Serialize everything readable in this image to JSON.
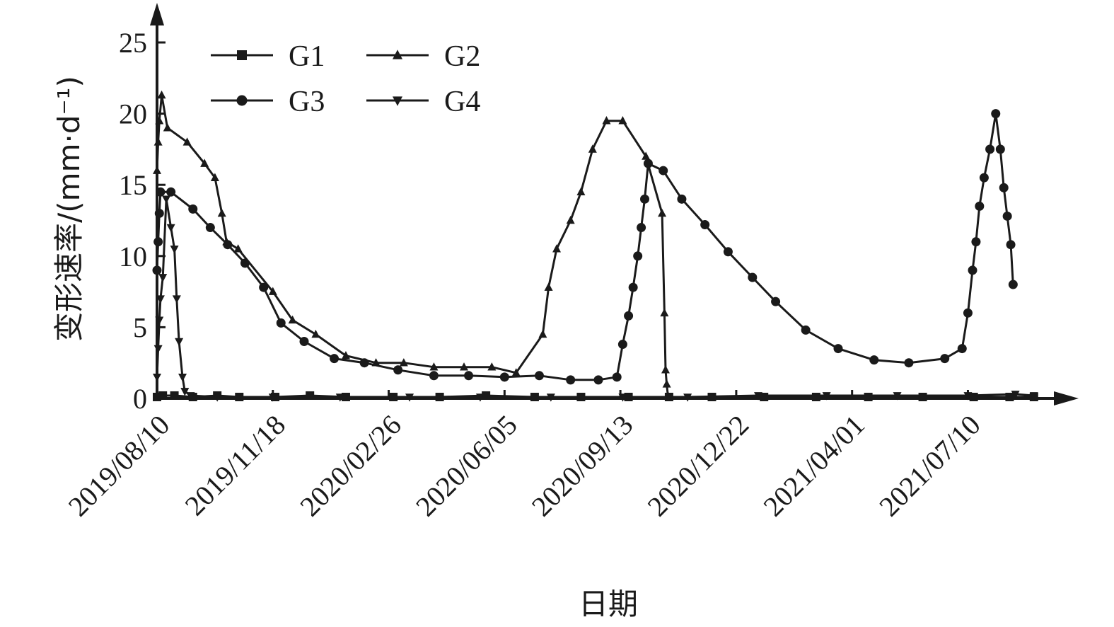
{
  "chart_data": {
    "type": "line",
    "xlabel": "日期",
    "ylabel": "变形速率/(mm·d⁻¹)",
    "ylim": [
      0,
      25
    ],
    "xlim": [
      "2019-08-10",
      "2021-09-10"
    ],
    "y_ticks": [
      0,
      5,
      10,
      15,
      20,
      25
    ],
    "x_tick_labels": [
      "2019/08/10",
      "2019/11/18",
      "2020/02/26",
      "2020/06/05",
      "2020/09/13",
      "2020/12/22",
      "2021/04/01",
      "2021/07/10"
    ],
    "x_tick_dates": [
      "2019-08-10",
      "2019-11-18",
      "2020-02-26",
      "2020-06-05",
      "2020-09-13",
      "2020-12-22",
      "2021-04-01",
      "2021-07-10"
    ],
    "legend_position": "top-left",
    "grid": false,
    "series": [
      {
        "name": "G1",
        "marker": "square",
        "x": [
          "2019-08-10",
          "2019-08-15",
          "2019-08-25",
          "2019-09-10",
          "2019-10-01",
          "2019-10-20",
          "2019-11-20",
          "2019-12-20",
          "2020-01-20",
          "2020-03-01",
          "2020-04-10",
          "2020-05-20",
          "2020-07-01",
          "2020-08-10",
          "2020-09-20",
          "2020-10-25",
          "2020-12-01",
          "2021-01-15",
          "2021-03-01",
          "2021-04-15",
          "2021-06-01",
          "2021-07-15",
          "2021-08-15",
          "2021-09-05"
        ],
        "values": [
          0.1,
          0.2,
          0.2,
          0.1,
          0.2,
          0.1,
          0.1,
          0.2,
          0.1,
          0.1,
          0.1,
          0.2,
          0.1,
          0.1,
          0.1,
          0.1,
          0.1,
          0.1,
          0.1,
          0.1,
          0.1,
          0.1,
          0.1,
          0.1
        ]
      },
      {
        "name": "G2",
        "marker": "triangle-up",
        "x": [
          "2019-08-10",
          "2019-08-11",
          "2019-08-12",
          "2019-08-14",
          "2019-08-19",
          "2019-09-05",
          "2019-09-20",
          "2019-09-29",
          "2019-10-05",
          "2019-10-09",
          "2019-10-19",
          "2019-11-18",
          "2019-12-05",
          "2019-12-25",
          "2020-01-20",
          "2020-02-15",
          "2020-03-10",
          "2020-04-05",
          "2020-05-01",
          "2020-05-25",
          "2020-06-15",
          "2020-07-08",
          "2020-07-13",
          "2020-07-20",
          "2020-08-01",
          "2020-08-10",
          "2020-08-20",
          "2020-09-01",
          "2020-09-15",
          "2020-10-05",
          "2020-10-19",
          "2020-10-21",
          "2020-10-22",
          "2020-10-23",
          "2020-10-24"
        ],
        "values": [
          16,
          18,
          19.5,
          21.3,
          19,
          18,
          16.5,
          15.5,
          13,
          11,
          10.5,
          7.5,
          5.5,
          4.5,
          3,
          2.5,
          2.5,
          2.2,
          2.2,
          2.2,
          1.8,
          4.5,
          7.8,
          10.5,
          12.5,
          14.5,
          17.5,
          19.5,
          19.5,
          17,
          13,
          6,
          2,
          1,
          0.2
        ]
      },
      {
        "name": "G3",
        "marker": "circle",
        "x": [
          "2019-08-10",
          "2019-08-11",
          "2019-08-12",
          "2019-08-13",
          "2019-08-22",
          "2019-09-10",
          "2019-09-25",
          "2019-10-10",
          "2019-10-25",
          "2019-11-10",
          "2019-11-25",
          "2019-12-15",
          "2020-01-10",
          "2020-02-05",
          "2020-03-05",
          "2020-04-05",
          "2020-05-05",
          "2020-06-05",
          "2020-07-05",
          "2020-08-01",
          "2020-08-25",
          "2020-09-10",
          "2020-09-15",
          "2020-09-20",
          "2020-09-24",
          "2020-09-28",
          "2020-10-01",
          "2020-10-04",
          "2020-10-07",
          "2020-10-20",
          "2020-11-05",
          "2020-11-25",
          "2020-12-15",
          "2021-01-05",
          "2021-01-25",
          "2021-02-20",
          "2021-03-20",
          "2021-04-20",
          "2021-05-20",
          "2021-06-20",
          "2021-07-05",
          "2021-07-10",
          "2021-07-14",
          "2021-07-17",
          "2021-07-20",
          "2021-07-24",
          "2021-07-29",
          "2021-08-03",
          "2021-08-07",
          "2021-08-10",
          "2021-08-13",
          "2021-08-16",
          "2021-08-18"
        ],
        "values": [
          9,
          11,
          13,
          14.5,
          14.5,
          13.3,
          12,
          10.8,
          9.5,
          7.8,
          5.3,
          4,
          2.8,
          2.5,
          2,
          1.6,
          1.6,
          1.5,
          1.6,
          1.3,
          1.3,
          1.5,
          3.8,
          5.8,
          7.8,
          10,
          12,
          14,
          16.5,
          16,
          14,
          12.2,
          10.3,
          8.5,
          6.8,
          4.8,
          3.5,
          2.7,
          2.5,
          2.8,
          3.5,
          6,
          9,
          11,
          13.5,
          15.5,
          17.5,
          20,
          17.5,
          14.8,
          12.8,
          10.8,
          8
        ]
      },
      {
        "name": "G4",
        "marker": "triangle-down",
        "x": [
          "2019-08-10",
          "2019-08-11",
          "2019-08-12",
          "2019-08-13",
          "2019-08-15",
          "2019-08-18",
          "2019-08-22",
          "2019-08-25",
          "2019-08-27",
          "2019-08-29",
          "2019-09-01",
          "2019-09-03",
          "2019-09-08",
          "2019-10-01",
          "2019-11-18",
          "2020-01-15",
          "2020-03-15",
          "2020-05-15",
          "2020-07-15",
          "2020-09-15",
          "2020-11-10",
          "2021-01-10",
          "2021-03-10",
          "2021-05-10",
          "2021-07-10",
          "2021-08-20",
          "2021-09-05"
        ],
        "values": [
          1.5,
          3.5,
          5.5,
          7,
          8.5,
          14,
          12,
          10.5,
          7,
          4,
          1.5,
          0.5,
          0.2,
          0.1,
          0.1,
          0.1,
          0.1,
          0.1,
          0.1,
          0.1,
          0.1,
          0.2,
          0.2,
          0.2,
          0.2,
          0.3,
          0.2
        ]
      }
    ]
  }
}
